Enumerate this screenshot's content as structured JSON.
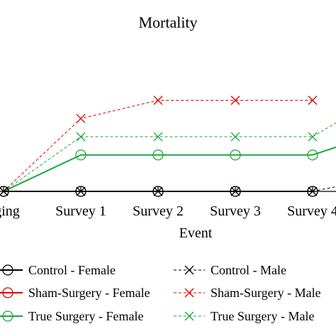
{
  "chart_data": {
    "type": "line",
    "title": "Mortality",
    "xlabel": "Event",
    "ylabel": "",
    "categories": [
      "Tagging",
      "Survey 1",
      "Survey 2",
      "Survey 3",
      "Survey 4"
    ],
    "visible_tick_labels": [
      "gging",
      "Survey 1",
      "Survey 2",
      "Survey 3",
      "Survey 4"
    ],
    "ylim": [
      0,
      5
    ],
    "grid": false,
    "legend_position": "bottom",
    "series": [
      {
        "name": "Control - Female",
        "color": "#000000",
        "dash": "solid",
        "marker": "circle",
        "values": [
          0,
          0,
          0,
          0,
          0
        ]
      },
      {
        "name": "Control - Male",
        "color": "#000000",
        "dash": "dashed",
        "marker": "x",
        "values": [
          0,
          0,
          0,
          0,
          0
        ]
      },
      {
        "name": "Sham-Surgery - Female",
        "color": "#e00000",
        "dash": "solid",
        "marker": "circle",
        "values": [
          0,
          0,
          0,
          0,
          0
        ]
      },
      {
        "name": "Sham-Surgery - Male",
        "color": "#e00000",
        "dash": "dashed",
        "marker": "x",
        "values": [
          0,
          4,
          5,
          5,
          5
        ]
      },
      {
        "name": "True Surgery - Female",
        "color": "#17a83a",
        "dash": "solid",
        "marker": "circle",
        "values": [
          0,
          2,
          2,
          2,
          2
        ]
      },
      {
        "name": "True Surgery - Male",
        "color": "#17a83a",
        "dash": "dashed",
        "marker": "x",
        "values": [
          0,
          3,
          3,
          3,
          3
        ]
      }
    ]
  }
}
